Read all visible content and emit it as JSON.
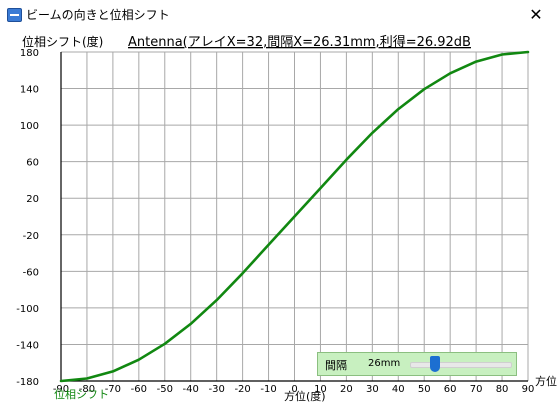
{
  "window": {
    "title": "ビームの向きと位相シフト",
    "close_glyph": "✕"
  },
  "slider": {
    "label": "間隔",
    "value": "26mm",
    "position": 0.25
  },
  "chart_data": {
    "type": "line",
    "title": "Antenna(アレイX=32,間隔X=26.31mm,利得=26.92dB",
    "ylabel": "位相シフト(度)",
    "xlabel": "方位(度)",
    "xlabel_right": "方位",
    "series_label": "位相シフト",
    "xlim": [
      -90,
      90
    ],
    "ylim": [
      -180,
      180
    ],
    "xticks": [
      -90,
      -80,
      -70,
      -60,
      -50,
      -40,
      -30,
      -20,
      -10,
      0,
      10,
      20,
      30,
      40,
      50,
      60,
      70,
      80,
      90
    ],
    "yticks": [
      180,
      140,
      100,
      60,
      20,
      -20,
      -60,
      -100,
      -140,
      -180
    ],
    "grid": true,
    "series": [
      {
        "color": "#118811",
        "x": [
          -90,
          -80,
          -70,
          -60,
          -50,
          -40,
          -30,
          -20,
          -10,
          0,
          10,
          20,
          30,
          40,
          50,
          60,
          70,
          80,
          90
        ],
        "y": [
          -180,
          -177.3,
          -169.5,
          -156.7,
          -139.3,
          -117.5,
          -91.5,
          -62.1,
          -30.9,
          0,
          30.9,
          62.1,
          91.5,
          117.5,
          139.3,
          156.7,
          169.5,
          177.3,
          180
        ]
      }
    ]
  }
}
